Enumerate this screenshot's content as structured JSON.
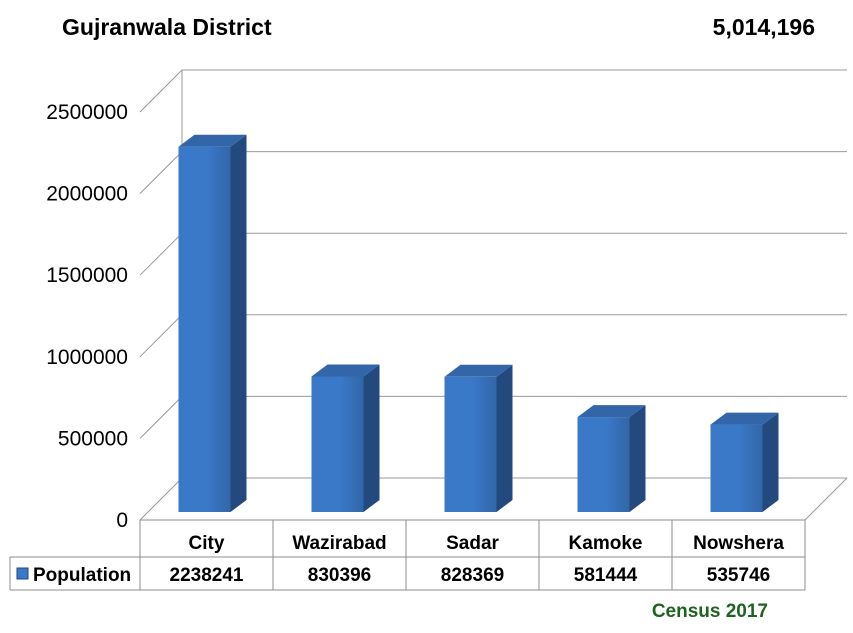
{
  "header": {
    "title": "Gujranwala District",
    "total": "5,014,196"
  },
  "footer": {
    "source": "Census 2017"
  },
  "colors": {
    "bar_front": "#3a78c8",
    "bar_side": "#23497e",
    "bar_top": "#3266a8",
    "source_text": "#1e6420"
  },
  "chart_data": {
    "type": "bar",
    "categories": [
      "City",
      "Wazirabad",
      "Sadar",
      "Kamoke",
      "Nowshera"
    ],
    "series": [
      {
        "name": "Population",
        "values": [
          2238241,
          830396,
          828369,
          581444,
          535746
        ]
      }
    ],
    "value_labels": [
      "2238241",
      "830396",
      "828369",
      "581444",
      "535746"
    ],
    "ylim": [
      0,
      2500000
    ],
    "yticks": [
      0,
      500000,
      1000000,
      1500000,
      2000000,
      2500000
    ],
    "ytick_labels": [
      "0",
      "500000",
      "1000000",
      "1500000",
      "2000000",
      "2500000"
    ],
    "grid": true,
    "legend": "data-table",
    "style": "3d-column"
  }
}
